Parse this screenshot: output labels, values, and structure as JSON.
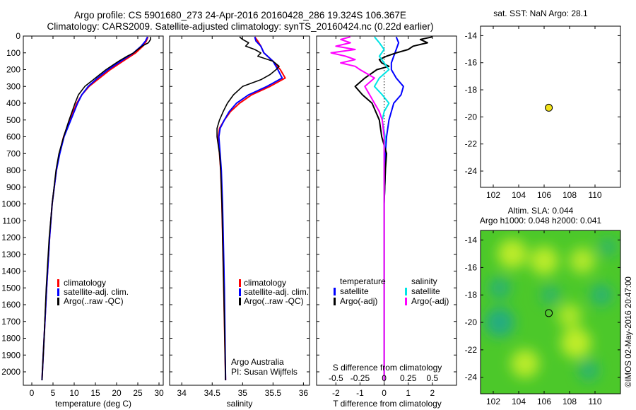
{
  "header": {
    "title_line1": "Argo profile: CS 5901680_273 24-Apr-2016 20160428_286 19.324S 106.367E",
    "title_line2": "Climatology: CARS2009. Satellite-adjusted climatology: synTS_20160424.nc (0.22d earlier)"
  },
  "colors": {
    "climatology": "#ff0000",
    "satellite": "#0000ff",
    "argo": "#000000",
    "sal_sat": "#00e5e5",
    "sal_argo": "#ff00ff",
    "marker": "#f2e21a"
  },
  "chart_data": [
    {
      "type": "line",
      "id": "temperature",
      "xlabel": "temperature (deg C)",
      "ylabel": "",
      "xlim": [
        -2,
        31
      ],
      "ylim": [
        2080,
        0
      ],
      "xticks": [
        "0",
        "5",
        "10",
        "15",
        "20",
        "25",
        "30"
      ],
      "yticks": [
        "0",
        "100",
        "200",
        "300",
        "400",
        "500",
        "600",
        "700",
        "800",
        "900",
        "1000",
        "1100",
        "1200",
        "1300",
        "1400",
        "1500",
        "1600",
        "1700",
        "1800",
        "1900",
        "2000"
      ],
      "legend": [
        "climatology",
        "satellite-adj. clim.",
        "Argo(..raw -QC)"
      ],
      "series": [
        {
          "name": "climatology",
          "depth": [
            5,
            30,
            60,
            100,
            150,
            200,
            250,
            300,
            350,
            400,
            500,
            600,
            700,
            800,
            1000,
            1200,
            1500,
            1800,
            2050
          ],
          "values": [
            27.4,
            27.0,
            26.2,
            24.5,
            21.5,
            18.5,
            16.0,
            13.5,
            11.8,
            10.6,
            9.0,
            7.5,
            6.5,
            5.8,
            4.8,
            4.2,
            3.5,
            2.9,
            2.4
          ]
        },
        {
          "name": "satellite-adj. clim.",
          "depth": [
            5,
            30,
            60,
            100,
            150,
            200,
            250,
            300,
            350,
            400,
            500,
            600,
            700,
            800,
            1000,
            1200,
            1500,
            1800,
            2050
          ],
          "values": [
            27.3,
            26.8,
            25.8,
            24.0,
            21.0,
            18.0,
            15.5,
            13.3,
            11.8,
            10.8,
            9.2,
            7.6,
            6.6,
            5.8,
            4.8,
            4.2,
            3.5,
            2.9,
            2.4
          ]
        },
        {
          "name": "Argo(..raw -QC)",
          "depth": [
            5,
            20,
            40,
            60,
            80,
            100,
            120,
            150,
            200,
            250,
            300,
            350,
            400,
            500,
            600,
            700,
            800,
            1000,
            1200,
            1500,
            1800,
            2050
          ],
          "values": [
            28.0,
            28.0,
            27.5,
            26.0,
            25.0,
            24.0,
            22.5,
            20.5,
            17.5,
            15.0,
            12.5,
            11.0,
            10.2,
            8.8,
            7.5,
            6.4,
            5.7,
            4.8,
            4.1,
            3.4,
            2.9,
            2.4
          ]
        }
      ]
    },
    {
      "type": "line",
      "id": "salinity",
      "xlabel": "salinity",
      "ylabel": "",
      "xlim": [
        33.8,
        36.1
      ],
      "ylim": [
        2080,
        0
      ],
      "xticks": [
        "34",
        "34.5",
        "35",
        "35.5",
        "36"
      ],
      "legend": [
        "climatology",
        "satellite-adj. clim.",
        "Argo(..raw -QC)"
      ],
      "annotations": [
        "Argo Australia",
        "PI: Susan Wijffels"
      ],
      "series": [
        {
          "name": "climatology",
          "depth": [
            5,
            30,
            60,
            100,
            150,
            200,
            250,
            300,
            350,
            400,
            450,
            500,
            550,
            600,
            700,
            800,
            1000,
            1500,
            2050
          ],
          "values": [
            35.2,
            35.25,
            35.3,
            35.35,
            35.5,
            35.62,
            35.7,
            35.45,
            35.15,
            34.95,
            34.8,
            34.7,
            34.62,
            34.6,
            34.62,
            34.64,
            34.66,
            34.69,
            34.72
          ]
        },
        {
          "name": "satellite-adj. clim.",
          "depth": [
            5,
            30,
            60,
            100,
            150,
            200,
            250,
            300,
            350,
            400,
            450,
            500,
            550,
            600,
            700,
            800,
            1000,
            1500,
            2050
          ],
          "values": [
            35.2,
            35.22,
            35.3,
            35.35,
            35.5,
            35.58,
            35.65,
            35.4,
            35.1,
            34.9,
            34.78,
            34.7,
            34.63,
            34.61,
            34.63,
            34.65,
            34.67,
            34.7,
            34.72
          ]
        },
        {
          "name": "Argo(..raw -QC)",
          "depth": [
            5,
            20,
            40,
            60,
            80,
            100,
            120,
            150,
            180,
            200,
            230,
            260,
            300,
            350,
            400,
            450,
            500,
            550,
            600,
            700,
            800,
            1000,
            1500,
            2050
          ],
          "values": [
            34.95,
            35.0,
            35.1,
            35.05,
            35.2,
            35.3,
            35.25,
            35.5,
            35.6,
            35.55,
            35.45,
            35.3,
            35.0,
            34.85,
            34.75,
            34.68,
            34.62,
            34.58,
            34.58,
            34.62,
            34.64,
            34.66,
            34.69,
            34.72
          ]
        }
      ]
    },
    {
      "type": "line",
      "id": "difference",
      "xlabel": "T difference from climatology",
      "xlabel_top": "S difference from climatology",
      "xlim": [
        -2.8,
        3.0
      ],
      "ylim": [
        2080,
        0
      ],
      "xticks": [
        "-2",
        "-1",
        "0",
        "1",
        "2"
      ],
      "xticks_s": [
        "-0.5",
        "-0.25",
        "0",
        "0.25",
        "0.5"
      ],
      "legend_headers": [
        "temperature",
        "salinity"
      ],
      "legend": [
        "satellite",
        "Argo(-adj)",
        "satellite",
        "Argo(-adj)"
      ],
      "series": [
        {
          "name": "T satellite",
          "depth": [
            5,
            40,
            80,
            120,
            160,
            200,
            250,
            300,
            350,
            400,
            500,
            600,
            700,
            800,
            1000,
            1500,
            2050
          ],
          "values": [
            0.5,
            0.6,
            0.5,
            0.4,
            0.3,
            0.3,
            0.5,
            0.8,
            0.7,
            0.4,
            0.2,
            0.1,
            0.05,
            0.05,
            0.0,
            0.0,
            0.0
          ]
        },
        {
          "name": "T Argo(-adj)",
          "depth": [
            5,
            20,
            40,
            60,
            80,
            100,
            120,
            140,
            160,
            180,
            200,
            250,
            300,
            350,
            400,
            500,
            600,
            700,
            800,
            1000,
            1500,
            2050
          ],
          "values": [
            2.0,
            1.5,
            1.8,
            1.2,
            1.0,
            0.5,
            0.1,
            -0.2,
            -0.1,
            0.2,
            -0.3,
            -0.8,
            -1.2,
            -0.9,
            -0.5,
            -0.2,
            -0.1,
            0.1,
            0.05,
            0.0,
            0.0,
            0.0
          ]
        },
        {
          "name": "S satellite",
          "depth": [
            5,
            40,
            80,
            120,
            160,
            200,
            250,
            300,
            350,
            400,
            450,
            500,
            600,
            700,
            800,
            1000,
            1500,
            2050
          ],
          "values": [
            -0.1,
            -0.05,
            0.0,
            -0.05,
            0.0,
            0.05,
            -0.05,
            -0.1,
            -0.02,
            0.05,
            0.0,
            -0.02,
            0.01,
            0.0,
            0.0,
            0.0,
            0.0,
            0.0
          ]
        },
        {
          "name": "S Argo(-adj)",
          "depth": [
            5,
            20,
            40,
            60,
            80,
            100,
            120,
            140,
            160,
            180,
            200,
            250,
            300,
            350,
            400,
            450,
            500,
            600,
            700,
            800,
            1000,
            1500,
            2050
          ],
          "values": [
            -0.35,
            -0.45,
            -0.35,
            -0.5,
            -0.3,
            -0.55,
            -0.4,
            -0.3,
            -0.45,
            -0.3,
            -0.25,
            -0.1,
            -0.2,
            -0.15,
            -0.1,
            -0.05,
            -0.02,
            0.0,
            0.0,
            0.0,
            0.0,
            0.0,
            0.0
          ]
        }
      ]
    },
    {
      "type": "scatter",
      "id": "sst_map",
      "title": "sat. SST: NaN Argo: 28.1",
      "xlim": [
        101,
        112
      ],
      "ylim": [
        -25.2,
        -13.3
      ],
      "xticks": [
        "102",
        "104",
        "106",
        "108",
        "110"
      ],
      "yticks": [
        "-14",
        "-16",
        "-18",
        "-20",
        "-22",
        "-24"
      ],
      "points": [
        {
          "lon": 106.367,
          "lat": -19.324
        }
      ]
    },
    {
      "type": "heatmap",
      "id": "sla_map",
      "title_line1": "Altim. SLA: 0.044",
      "title_line2": "Argo h1000: 0.048 h2000: 0.041",
      "xlim": [
        101,
        112
      ],
      "ylim": [
        -25.2,
        -13.3
      ],
      "xticks": [
        "102",
        "104",
        "106",
        "108",
        "110"
      ],
      "yticks": [
        "-14",
        "-16",
        "-18",
        "-20",
        "-22",
        "-24"
      ],
      "points": [
        {
          "lon": 106.367,
          "lat": -19.324
        }
      ],
      "blobs": [
        {
          "lon": 103.5,
          "lat": -15.0,
          "level": 0.9
        },
        {
          "lon": 106.0,
          "lat": -15.5,
          "level": 0.85
        },
        {
          "lon": 109.0,
          "lat": -15.5,
          "level": 0.7
        },
        {
          "lon": 108.0,
          "lat": -19.5,
          "level": 0.6
        },
        {
          "lon": 108.5,
          "lat": -21.5,
          "level": 0.95
        },
        {
          "lon": 104.5,
          "lat": -23.0,
          "level": 0.85
        },
        {
          "lon": 102.5,
          "lat": -20.0,
          "level": -0.9
        },
        {
          "lon": 102.5,
          "lat": -17.5,
          "level": -0.5
        },
        {
          "lon": 110.5,
          "lat": -18.0,
          "level": -0.5
        },
        {
          "lon": 109.5,
          "lat": -23.5,
          "level": -0.45
        },
        {
          "lon": 106.5,
          "lat": -18.0,
          "level": -0.35
        },
        {
          "lon": 111.0,
          "lat": -14.5,
          "level": -0.3
        }
      ]
    }
  ],
  "watermark": "©IMOS 02-May-2016 20:47:00"
}
